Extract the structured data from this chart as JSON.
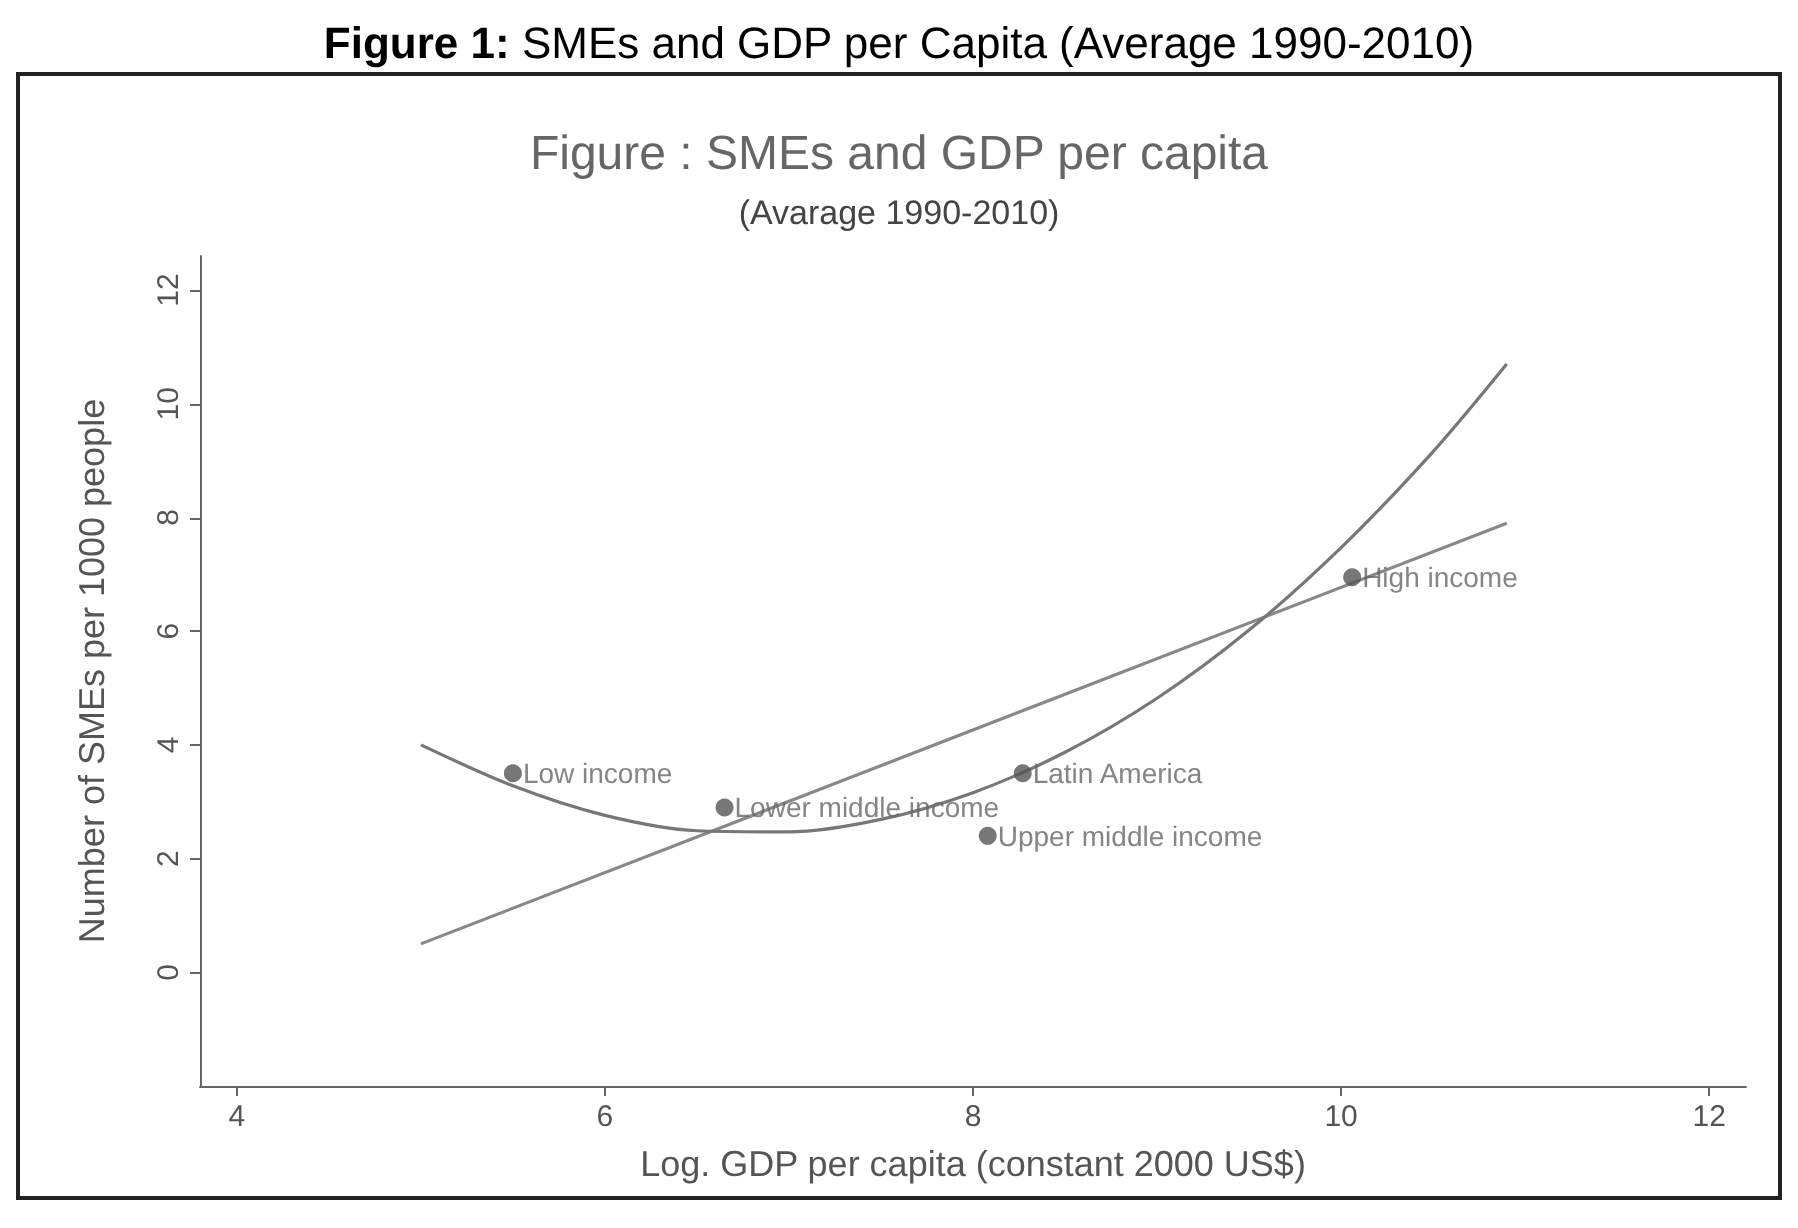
{
  "chart_data": {
    "type": "scatter",
    "title": "Figure 1: SMEs and GDP per Capita (Average 1990-2010)",
    "subtitle": "Figure : SMEs and GDP per capita",
    "xlabel": "Log. GDP per capita (constant 2000 US$)",
    "ylabel": "Number of SMEs per 1000 people",
    "annotations": [
      "(Avarage 1990-2010)",
      {
        "text": "Low income",
        "x": 5.5,
        "y": 3.5
      },
      {
        "text": "Lower middle income",
        "x": 6.65,
        "y": 2.9
      },
      {
        "text": "Latin America",
        "x": 8.27,
        "y": 3.5
      },
      {
        "text": "Upper middle income",
        "x": 8.08,
        "y": 2.4
      },
      {
        "text": "High income",
        "x": 10.06,
        "y": 6.95
      }
    ],
    "series": [
      {
        "type": "scatter",
        "color": "#555555",
        "marker": "circle",
        "x": [
          5.5,
          6.65,
          8.27,
          8.08,
          10.06
        ],
        "values": [
          3.5,
          2.9,
          3.5,
          2.4,
          6.95
        ]
      },
      {
        "type": "line",
        "color": "#888888",
        "marker": "none",
        "x": [
          5,
          10.9
        ],
        "values": [
          0.5,
          7.9
        ]
      },
      {
        "type": "line",
        "color": "#777777",
        "marker": "none",
        "x": [
          5,
          5.5,
          6,
          6.5,
          7,
          7.5,
          8,
          8.5,
          9,
          9.5,
          10,
          10.5,
          10.9
        ],
        "values": [
          4.0,
          3.28,
          2.76,
          2.49,
          2.47,
          2.69,
          3.16,
          3.87,
          4.82,
          6.02,
          7.47,
          9.16,
          10.7
        ]
      }
    ],
    "xlim": [
      3.8,
      12.2
    ],
    "xticks": [
      4,
      6,
      8,
      10,
      12
    ],
    "ylim": [
      -2,
      12.6
    ],
    "yticks": [
      0,
      2,
      4,
      6,
      8,
      10,
      12
    ],
    "grid": false
  }
}
